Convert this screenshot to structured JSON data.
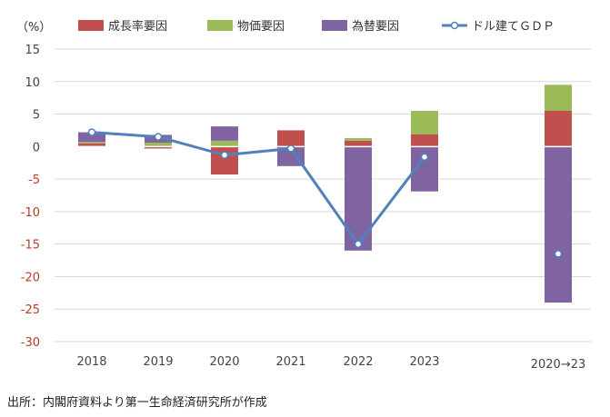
{
  "unit_label": "（%）",
  "source": "出所：内閣府資料より第一生命経済研究所が作成",
  "chart_data": {
    "type": "bar",
    "stacked": true,
    "categories": [
      "2018",
      "2019",
      "2020",
      "2021",
      "2022",
      "2023",
      "2020→23"
    ],
    "ylim": [
      -30,
      15
    ],
    "yticks": [
      15,
      10,
      5,
      0,
      -5,
      -10,
      -15,
      -20,
      -25,
      -30
    ],
    "grid": true,
    "legend_position": "top",
    "series": [
      {
        "name": "成長率要因",
        "type": "bar",
        "color": "#c0504d",
        "values": [
          0.5,
          -0.3,
          -4.3,
          2.5,
          0.9,
          1.9,
          5.5
        ]
      },
      {
        "name": "物価要因",
        "type": "bar",
        "color": "#9bbb59",
        "values": [
          0.2,
          0.6,
          0.9,
          0.0,
          0.4,
          3.6,
          4.0
        ]
      },
      {
        "name": "為替要因",
        "type": "bar",
        "color": "#8064a2",
        "values": [
          1.5,
          1.2,
          2.2,
          -3.0,
          -16.0,
          -6.9,
          -24.0
        ]
      },
      {
        "name": "ドル建てＧＤＰ",
        "type": "line",
        "color": "#4f81bd",
        "values": [
          2.2,
          1.5,
          -1.3,
          -0.3,
          -15.0,
          -1.6,
          -16.5
        ]
      }
    ]
  }
}
